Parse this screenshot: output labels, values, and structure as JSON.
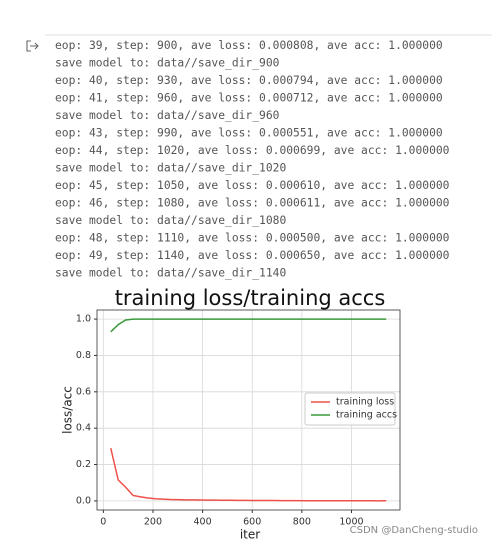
{
  "log_lines": [
    "eop: 39, step: 900, ave loss: 0.000808, ave acc: 1.000000",
    "save model to: data//save_dir_900",
    "eop: 40, step: 930, ave loss: 0.000794, ave acc: 1.000000",
    "eop: 41, step: 960, ave loss: 0.000712, ave acc: 1.000000",
    "save model to: data//save_dir_960",
    "eop: 43, step: 990, ave loss: 0.000551, ave acc: 1.000000",
    "eop: 44, step: 1020, ave loss: 0.000699, ave acc: 1.000000",
    "save model to: data//save_dir_1020",
    "eop: 45, step: 1050, ave loss: 0.000610, ave acc: 1.000000",
    "eop: 46, step: 1080, ave loss: 0.000611, ave acc: 1.000000",
    "save model to: data//save_dir_1080",
    "eop: 48, step: 1110, ave loss: 0.000500, ave acc: 1.000000",
    "eop: 49, step: 1140, ave loss: 0.000650, ave acc: 1.000000",
    "save model to: data//save_dir_1140"
  ],
  "chart_data": {
    "type": "line",
    "title": "training loss/training accs",
    "x_label": "iter",
    "y_label": "loss/acc",
    "x": [
      30,
      60,
      90,
      120,
      150,
      180,
      210,
      240,
      270,
      300,
      330,
      360,
      390,
      420,
      450,
      480,
      510,
      540,
      570,
      600,
      630,
      660,
      690,
      720,
      750,
      780,
      810,
      840,
      870,
      900,
      930,
      960,
      990,
      1020,
      1050,
      1080,
      1110,
      1140
    ],
    "series": [
      {
        "name": "training loss",
        "color": "#f0504a",
        "values": [
          0.29,
          0.115,
          0.075,
          0.03,
          0.022,
          0.016,
          0.012,
          0.01,
          0.008,
          0.007,
          0.006,
          0.0055,
          0.005,
          0.0045,
          0.004,
          0.0037,
          0.0034,
          0.0031,
          0.0028,
          0.0026,
          0.0024,
          0.0022,
          0.002,
          0.0018,
          0.0016,
          0.0014,
          0.0012,
          0.0011,
          0.00095,
          0.000808,
          0.000794,
          0.000712,
          0.000551,
          0.000699,
          0.00061,
          0.000611,
          0.0005,
          0.00065
        ]
      },
      {
        "name": "training accs",
        "color": "#3a9a3a",
        "values": [
          0.93,
          0.97,
          0.995,
          1.0,
          1.0,
          1.0,
          1.0,
          1.0,
          1.0,
          1.0,
          1.0,
          1.0,
          1.0,
          1.0,
          1.0,
          1.0,
          1.0,
          1.0,
          1.0,
          1.0,
          1.0,
          1.0,
          1.0,
          1.0,
          1.0,
          1.0,
          1.0,
          1.0,
          1.0,
          1.0,
          1.0,
          1.0,
          1.0,
          1.0,
          1.0,
          1.0,
          1.0,
          1.0
        ]
      }
    ],
    "xlim": [
      -25.5,
      1195.5
    ],
    "xticks": [
      0,
      200,
      400,
      600,
      800,
      1000
    ],
    "ylim": [
      -0.05,
      1.05
    ],
    "yticks": [
      {
        "value": 0,
        "label": "0.0"
      },
      0.2,
      0.4,
      0.6,
      0.8,
      {
        "value": 1,
        "label": "1.0"
      }
    ],
    "grid": true,
    "legend": "center right"
  },
  "watermark": "CSDN @DanCheng-studio"
}
